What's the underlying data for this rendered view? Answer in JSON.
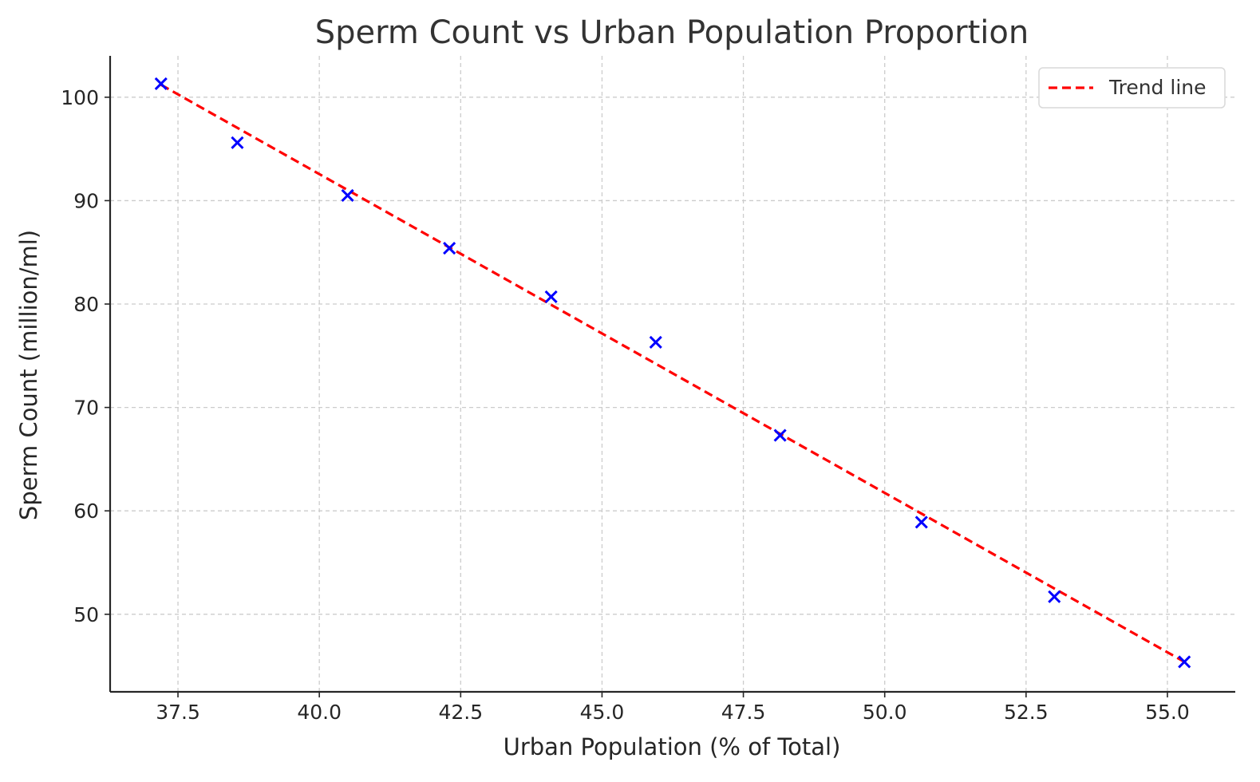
{
  "chart_data": {
    "type": "scatter",
    "title": "Sperm Count vs Urban Population Proportion",
    "xlabel": "Urban Population (% of Total)",
    "ylabel": "Sperm Count (million/ml)",
    "xlim": [
      36.3,
      56.2
    ],
    "ylim": [
      42.5,
      104.0
    ],
    "x_ticks": [
      37.5,
      40.0,
      42.5,
      45.0,
      47.5,
      50.0,
      52.5,
      55.0
    ],
    "x_tick_labels": [
      "37.5",
      "40.0",
      "42.5",
      "45.0",
      "47.5",
      "50.0",
      "52.5",
      "55.0"
    ],
    "y_ticks": [
      50,
      60,
      70,
      80,
      90,
      100
    ],
    "y_tick_labels": [
      "50",
      "60",
      "70",
      "80",
      "90",
      "100"
    ],
    "grid": true,
    "legend_position": "top-right",
    "series": [
      {
        "kind": "scatter",
        "marker": "x",
        "color": "#0000ff",
        "x": [
          37.2,
          38.55,
          40.5,
          42.3,
          44.1,
          45.95,
          48.15,
          50.65,
          53.0,
          55.3
        ],
        "y": [
          101.3,
          95.6,
          90.5,
          85.4,
          80.7,
          76.3,
          67.3,
          58.9,
          51.7,
          45.4
        ]
      },
      {
        "kind": "line",
        "name": "Trend line",
        "style": "dashed",
        "color": "#ff0000",
        "x": [
          37.2,
          55.3
        ],
        "y": [
          101.2,
          45.4
        ]
      }
    ]
  }
}
